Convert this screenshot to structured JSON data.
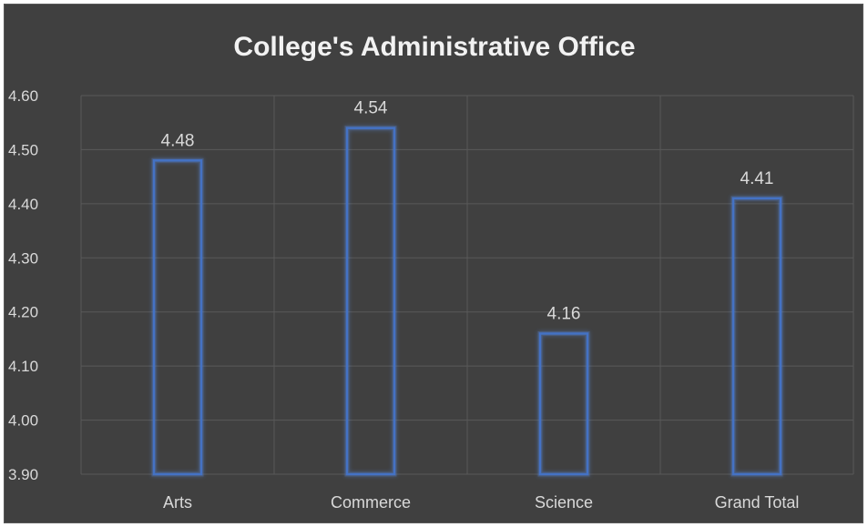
{
  "chart_data": {
    "type": "bar",
    "title": "College's Administrative Office",
    "categories": [
      "Arts",
      "Commerce",
      "Science",
      "Grand Total"
    ],
    "values": [
      4.48,
      4.54,
      4.16,
      4.41
    ],
    "value_labels": [
      "4.48",
      "4.54",
      "4.16",
      "4.41"
    ],
    "xlabel": "",
    "ylabel": "",
    "ylim": [
      3.9,
      4.6
    ],
    "yticks": [
      "3.90",
      "4.00",
      "4.10",
      "4.20",
      "4.30",
      "4.40",
      "4.50",
      "4.60"
    ],
    "grid": true,
    "legend": "none",
    "bar_style": "outline",
    "colors": {
      "background": "#404040",
      "bar_outline": "#4472c4",
      "bar_glow": "#5b8fe8",
      "gridline": "#595959",
      "text": "#d9d9d9",
      "title": "#f2f2f2"
    }
  }
}
